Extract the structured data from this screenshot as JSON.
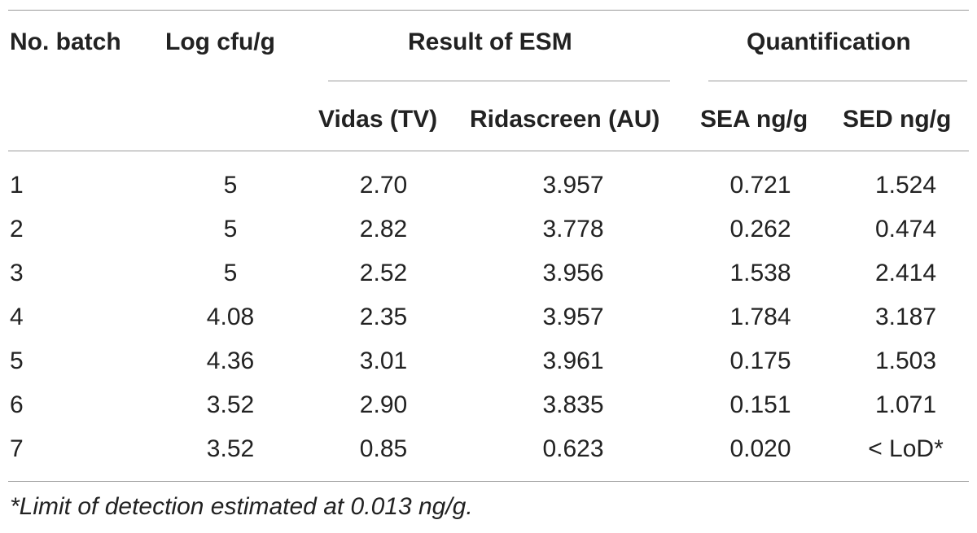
{
  "table": {
    "headers": {
      "batch": "No. batch",
      "log": "Log cfu/g",
      "esm_group": "Result of ESM",
      "quant_group": "Quantification",
      "vidas": "Vidas (TV)",
      "ridascreen": "Ridascreen (AU)",
      "sea": "SEA ng/g",
      "sed": "SED ng/g"
    },
    "rows": [
      [
        "1",
        "5",
        "2.70",
        "3.957",
        "0.721",
        "1.524"
      ],
      [
        "2",
        "5",
        "2.82",
        "3.778",
        "0.262",
        "0.474"
      ],
      [
        "3",
        "5",
        "2.52",
        "3.956",
        "1.538",
        "2.414"
      ],
      [
        "4",
        "4.08",
        "2.35",
        "3.957",
        "1.784",
        "3.187"
      ],
      [
        "5",
        "4.36",
        "3.01",
        "3.961",
        "0.175",
        "1.503"
      ],
      [
        "6",
        "3.52",
        "2.90",
        "3.835",
        "0.151",
        "1.071"
      ],
      [
        "7",
        "3.52",
        "0.85",
        "0.623",
        "0.020",
        "< LoD*"
      ]
    ],
    "footnote": "*Limit of detection estimated at 0.013 ng/g."
  }
}
